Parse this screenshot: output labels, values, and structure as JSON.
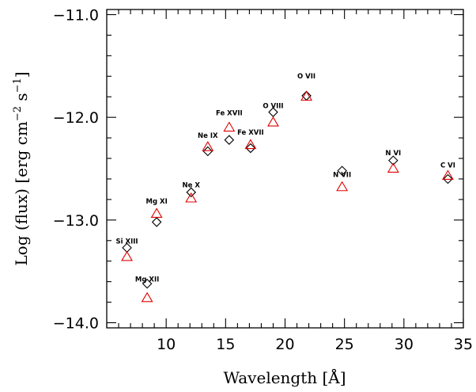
{
  "chart_data": {
    "type": "scatter",
    "xlabel": "Wavelength [Å]",
    "ylabel": "Log (flux) [erg cm^-2 s^-1]",
    "ylabel_parts": {
      "main": "Log (flux) [erg cm",
      "exp1": "−2",
      "mid": " s",
      "exp2": "−1",
      "end": "]"
    },
    "xlim": [
      5.0,
      35.0
    ],
    "ylim": [
      -14.05,
      -10.95
    ],
    "xticks": [
      10,
      15,
      20,
      25,
      30,
      35
    ],
    "xtick_labels": [
      "10",
      "15",
      "20",
      "25",
      "30",
      "35"
    ],
    "yticks": [
      -14.0,
      -13.0,
      -12.0,
      -11.0
    ],
    "ytick_labels": [
      "−14.0",
      "−13.0",
      "−12.0",
      "−11.0"
    ],
    "grid": false,
    "colors": {
      "diamond": "#000000",
      "triangle": "#e00000"
    },
    "series": [
      {
        "marker": "diamond",
        "points": [
          {
            "x": 6.7,
            "y": -13.27
          },
          {
            "x": 8.4,
            "y": -13.62
          },
          {
            "x": 9.2,
            "y": -13.02
          },
          {
            "x": 12.1,
            "y": -12.73
          },
          {
            "x": 13.5,
            "y": -12.33
          },
          {
            "x": 15.3,
            "y": -12.22
          },
          {
            "x": 17.1,
            "y": -12.3
          },
          {
            "x": 19.0,
            "y": -11.95
          },
          {
            "x": 21.8,
            "y": -11.79
          },
          {
            "x": 24.8,
            "y": -12.52
          },
          {
            "x": 29.1,
            "y": -12.42
          },
          {
            "x": 33.7,
            "y": -12.6
          }
        ]
      },
      {
        "marker": "triangle",
        "points": [
          {
            "x": 6.7,
            "y": -13.36
          },
          {
            "x": 8.4,
            "y": -13.76
          },
          {
            "x": 9.2,
            "y": -12.94
          },
          {
            "x": 12.1,
            "y": -12.79
          },
          {
            "x": 13.5,
            "y": -12.29
          },
          {
            "x": 15.3,
            "y": -12.1
          },
          {
            "x": 17.1,
            "y": -12.27
          },
          {
            "x": 19.0,
            "y": -12.05
          },
          {
            "x": 21.8,
            "y": -11.8
          },
          {
            "x": 24.8,
            "y": -12.68
          },
          {
            "x": 29.1,
            "y": -12.5
          },
          {
            "x": 33.7,
            "y": -12.57
          }
        ]
      }
    ],
    "annotations": [
      {
        "text": "Si XIII",
        "x": 6.7,
        "y": -13.23
      },
      {
        "text": "Mg XII",
        "x": 8.4,
        "y": -13.6
      },
      {
        "text": "Mg XI",
        "x": 9.2,
        "y": -12.84
      },
      {
        "text": "Ne X",
        "x": 12.1,
        "y": -12.68
      },
      {
        "text": "Ne IX",
        "x": 13.5,
        "y": -12.2
      },
      {
        "text": "Fe XVII",
        "x": 15.3,
        "y": -11.98
      },
      {
        "text": "Fe XVII",
        "x": 17.1,
        "y": -12.17
      },
      {
        "text": "O VIII",
        "x": 19.0,
        "y": -11.91
      },
      {
        "text": "O VII",
        "x": 21.8,
        "y": -11.62
      },
      {
        "text": "N VII",
        "x": 24.8,
        "y": -12.58
      },
      {
        "text": "N VI",
        "x": 29.1,
        "y": -12.37
      },
      {
        "text": "C VI",
        "x": 33.7,
        "y": -12.49
      }
    ]
  }
}
